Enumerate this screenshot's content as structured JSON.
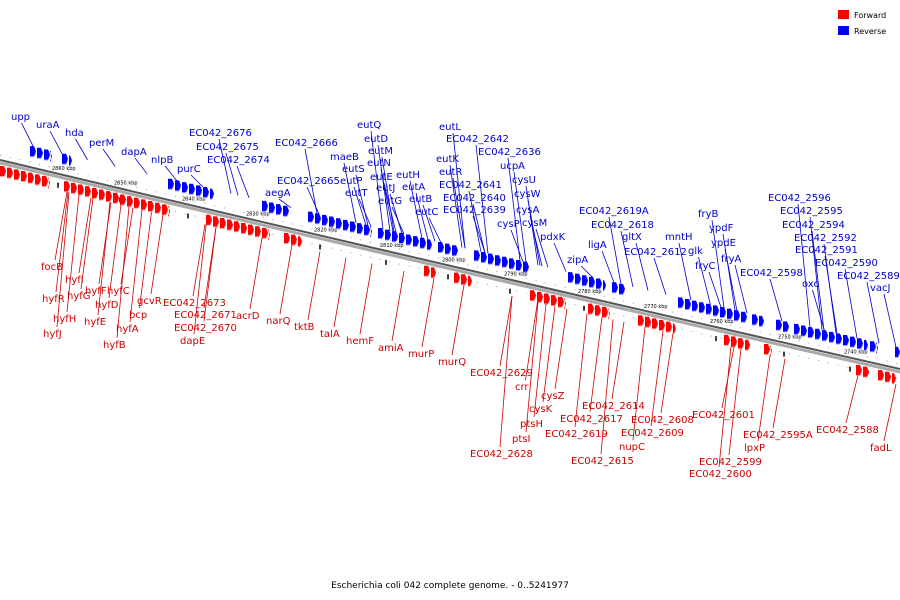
{
  "caption": "Escherichia coli 042 complete genome. - 0..5241977",
  "legend": [
    {
      "label": "Forward",
      "color": "#ff0000"
    },
    {
      "label": "Reverse",
      "color": "#0000ff"
    }
  ],
  "ticks": [
    "2860 kbp",
    "2850 kbp",
    "2840 kbp",
    "2830 kbp",
    "2820 kbp",
    "2810 kbp",
    "2800 kbp",
    "2790 kbp",
    "2780 kbp",
    "2770 kbp",
    "2760 kbp",
    "2750 kbp",
    "2740 kbp"
  ],
  "reverse_genes": [
    "upp",
    "uraA",
    "hda",
    "perM",
    "dapA",
    "nlpB",
    "purC",
    "EC042_2676",
    "EC042_2675",
    "EC042_2674",
    "EC042_2666",
    "aegA",
    "EC042_2665",
    "eutQ",
    "maeB",
    "eutD",
    "eutS",
    "eutM",
    "eutP",
    "eutN",
    "eutT",
    "eutE",
    "eutJ",
    "eutG",
    "eutH",
    "eutA",
    "eutB",
    "eutC",
    "eutL",
    "EC042_2642",
    "eutK",
    "eutR",
    "EC042_2636",
    "EC042_2641",
    "ucpA",
    "EC042_2640",
    "cysU",
    "EC042_2639",
    "cysW",
    "cysA",
    "cysP",
    "cysM",
    "pdxK",
    "EC042_2619A",
    "EC042_2618",
    "zipA",
    "ligA",
    "gltX",
    "EC042_2612",
    "mntH",
    "fryB",
    "ypdF",
    "glk",
    "ypdE",
    "fryC",
    "fryA",
    "EC042_2598",
    "EC042_2596",
    "EC042_2595",
    "EC042_2594",
    "EC042_2592",
    "EC042_2591",
    "EC042_2590",
    "oxc",
    "EC042_2589",
    "vacJ"
  ],
  "forward_genes": [
    "focB",
    "hyfI",
    "hyfR",
    "hyfG",
    "hyfF",
    "hyfC",
    "hyfH",
    "hyfE",
    "hyfD",
    "gcvR",
    "bcp",
    "hyfJ",
    "hyfA",
    "hyfB",
    "EC042_2673",
    "EC042_2671",
    "EC042_2670",
    "dapE",
    "acrD",
    "narQ",
    "tktB",
    "talA",
    "hemF",
    "amiA",
    "murP",
    "murQ",
    "EC042_2629",
    "crr",
    "cysZ",
    "cysK",
    "ptsH",
    "ptsI",
    "EC042_2628",
    "EC042_2614",
    "EC042_2617",
    "EC042_2619",
    "EC042_2615",
    "EC042_2608",
    "EC042_2609",
    "nupC",
    "EC042_2601",
    "EC042_2599",
    "EC042_2600",
    "EC042_2595A",
    "lpxP",
    "EC042_2588",
    "fadL"
  ]
}
